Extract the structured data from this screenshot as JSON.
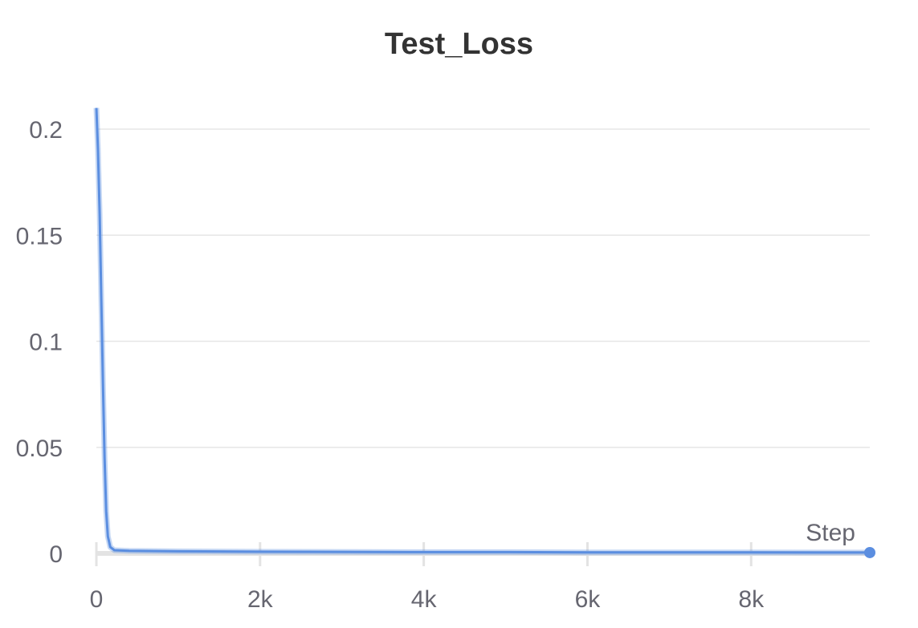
{
  "chart_data": {
    "type": "line",
    "title": "Test_Loss",
    "xlabel": "Step",
    "ylabel": "",
    "xlim": [
      0,
      9450
    ],
    "ylim": [
      0,
      0.21
    ],
    "x_ticks": [
      {
        "value": 0,
        "label": "0"
      },
      {
        "value": 2000,
        "label": "2k"
      },
      {
        "value": 4000,
        "label": "4k"
      },
      {
        "value": 6000,
        "label": "6k"
      },
      {
        "value": 8000,
        "label": "8k"
      }
    ],
    "y_ticks": [
      {
        "value": 0,
        "label": "0"
      },
      {
        "value": 0.05,
        "label": "0.05"
      },
      {
        "value": 0.1,
        "label": "0.1"
      },
      {
        "value": 0.15,
        "label": "0.15"
      },
      {
        "value": 0.2,
        "label": "0.2"
      }
    ],
    "grid": true,
    "series": [
      {
        "color": "#5b8ee0",
        "points": [
          [
            0,
            0.21
          ],
          [
            20,
            0.19
          ],
          [
            40,
            0.16
          ],
          [
            60,
            0.12
          ],
          [
            80,
            0.08
          ],
          [
            100,
            0.045
          ],
          [
            120,
            0.02
          ],
          [
            140,
            0.008
          ],
          [
            170,
            0.003
          ],
          [
            220,
            0.0015
          ],
          [
            400,
            0.0012
          ],
          [
            1000,
            0.001
          ],
          [
            2000,
            0.0008
          ],
          [
            3000,
            0.0007
          ],
          [
            4000,
            0.0006
          ],
          [
            5000,
            0.0006
          ],
          [
            6000,
            0.0005
          ],
          [
            7000,
            0.0005
          ],
          [
            8000,
            0.0005
          ],
          [
            9000,
            0.0004
          ],
          [
            9450,
            0.0004
          ]
        ]
      }
    ]
  }
}
